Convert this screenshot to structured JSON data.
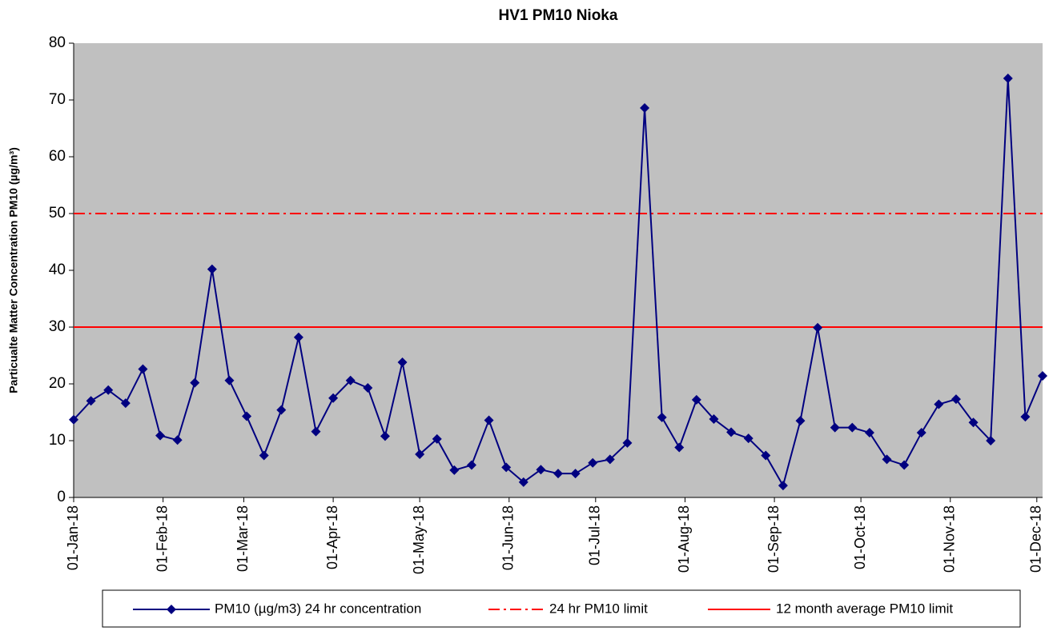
{
  "chart_data": {
    "type": "line",
    "title": "HV1 PM10  Nioka",
    "y_label": "Particualte Matter Concentration PM10 (µg/m³)",
    "x": [
      "2018-01-01",
      "2018-01-07",
      "2018-01-13",
      "2018-01-19",
      "2018-01-25",
      "2018-01-31",
      "2018-02-06",
      "2018-02-12",
      "2018-02-18",
      "2018-02-24",
      "2018-03-02",
      "2018-03-08",
      "2018-03-14",
      "2018-03-20",
      "2018-03-26",
      "2018-04-01",
      "2018-04-07",
      "2018-04-13",
      "2018-04-19",
      "2018-04-25",
      "2018-05-01",
      "2018-05-07",
      "2018-05-13",
      "2018-05-19",
      "2018-05-25",
      "2018-05-31",
      "2018-06-06",
      "2018-06-12",
      "2018-06-18",
      "2018-06-24",
      "2018-06-30",
      "2018-07-06",
      "2018-07-12",
      "2018-07-18",
      "2018-07-24",
      "2018-07-30",
      "2018-08-05",
      "2018-08-11",
      "2018-08-17",
      "2018-08-23",
      "2018-08-29",
      "2018-09-04",
      "2018-09-10",
      "2018-09-16",
      "2018-09-22",
      "2018-09-28",
      "2018-10-04",
      "2018-10-10",
      "2018-10-16",
      "2018-10-22",
      "2018-10-28",
      "2018-11-03",
      "2018-11-09",
      "2018-11-15",
      "2018-11-21",
      "2018-11-27",
      "2018-12-03"
    ],
    "series": [
      {
        "name": "PM10 (µg/m3) 24 hr concentration",
        "color": "#000080",
        "values": [
          13.7,
          17.0,
          18.9,
          16.6,
          22.6,
          10.9,
          10.1,
          20.2,
          40.2,
          20.6,
          14.3,
          7.4,
          15.4,
          28.2,
          11.6,
          17.5,
          20.6,
          19.3,
          10.8,
          23.8,
          7.6,
          10.3,
          4.8,
          5.7,
          13.6,
          5.3,
          2.7,
          4.9,
          4.2,
          4.2,
          6.1,
          6.7,
          9.6,
          68.6,
          14.1,
          8.8,
          17.2,
          13.8,
          11.5,
          10.4,
          7.4,
          2.1,
          13.5,
          29.9,
          12.3,
          12.3,
          11.4,
          6.7,
          5.7,
          11.4,
          16.4,
          17.3,
          13.2,
          10.0,
          73.8,
          14.2,
          21.4
        ]
      }
    ],
    "hlines": [
      {
        "name": "24 hr PM10 limit",
        "value": 50,
        "color": "#ff0000",
        "style": "dashdot"
      },
      {
        "name": "12 month average PM10 limit",
        "value": 30,
        "color": "#ff0000",
        "style": "solid"
      }
    ],
    "xlim": [
      "2018-01-01",
      "2018-12-03"
    ],
    "xticks": [
      {
        "value": "2018-01-01",
        "label": "01-Jan-18"
      },
      {
        "value": "2018-02-01",
        "label": "01-Feb-18"
      },
      {
        "value": "2018-03-01",
        "label": "01-Mar-18"
      },
      {
        "value": "2018-04-01",
        "label": "01-Apr-18"
      },
      {
        "value": "2018-05-01",
        "label": "01-May-18"
      },
      {
        "value": "2018-06-01",
        "label": "01-Jun-18"
      },
      {
        "value": "2018-07-01",
        "label": "01-Jul-18"
      },
      {
        "value": "2018-08-01",
        "label": "01-Aug-18"
      },
      {
        "value": "2018-09-01",
        "label": "01-Sep-18"
      },
      {
        "value": "2018-10-01",
        "label": "01-Oct-18"
      },
      {
        "value": "2018-11-01",
        "label": "01-Nov-18"
      },
      {
        "value": "2018-12-01",
        "label": "01-Dec-18"
      }
    ],
    "ylim": [
      0,
      80
    ],
    "yticks": [
      0,
      10,
      20,
      30,
      40,
      50,
      60,
      70,
      80
    ],
    "plot_background": "#c0c0c0",
    "legend": "bottom"
  }
}
